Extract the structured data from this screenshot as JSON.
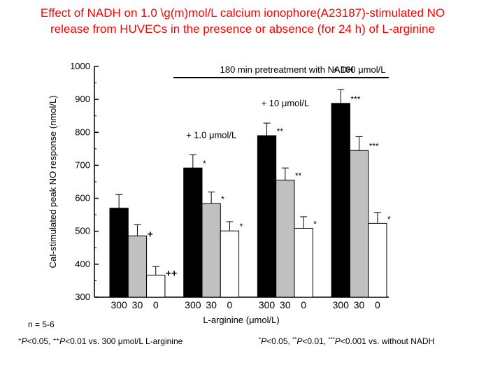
{
  "chart_data": {
    "type": "bar",
    "title": [
      "Effect of NADH on 1.0 \\g(m)mol/L calcium ionophore(A23187)-stimulated NO",
      "release from HUVECs  in the presence or absence (for 24 h) of L-arginine"
    ],
    "y_label": "CaI-stimulated peak NO response (nmol/L)",
    "x_label": "L-arginine (μmol/L)",
    "categories": [
      "300",
      "30",
      "0",
      "300",
      "30",
      "0",
      "300",
      "30",
      "0",
      "300",
      "30",
      "0"
    ],
    "values": [
      570,
      486,
      367,
      692,
      584,
      501,
      790,
      655,
      509,
      888,
      745,
      524
    ],
    "errors": [
      41,
      34,
      26,
      40,
      35,
      28,
      38,
      37,
      35,
      42,
      42,
      33
    ],
    "colors": [
      "#000000",
      "#c0c0c0",
      "#ffffff",
      "#000000",
      "#c0c0c0",
      "#ffffff",
      "#000000",
      "#c0c0c0",
      "#ffffff",
      "#000000",
      "#c0c0c0",
      "#ffffff"
    ],
    "significance": [
      null,
      "+",
      "++",
      "*",
      "*",
      "*",
      "**",
      "**",
      "*",
      "***",
      "***",
      "*"
    ],
    "group_labels": [
      "+ 1.0 μmol/L",
      "+ 10 μmol/L",
      "+ 100 μmol/L"
    ],
    "bracket_label": "180 min pretreatment with NADH",
    "ylim": [
      300,
      1000
    ],
    "yticks": [
      300,
      400,
      500,
      600,
      700,
      800,
      900,
      1000
    ],
    "footnotes": {
      "n": "n = 5-6",
      "left": [
        "+",
        "P",
        "<0.05, ",
        "++",
        "P",
        "<0.01 vs. 300 μmol/L L-arginine"
      ],
      "right": [
        "*",
        "P",
        "<0.05, ",
        "**",
        "P",
        "<0.01, ",
        "***",
        "P",
        "<0.001 vs. without NADH"
      ]
    }
  }
}
